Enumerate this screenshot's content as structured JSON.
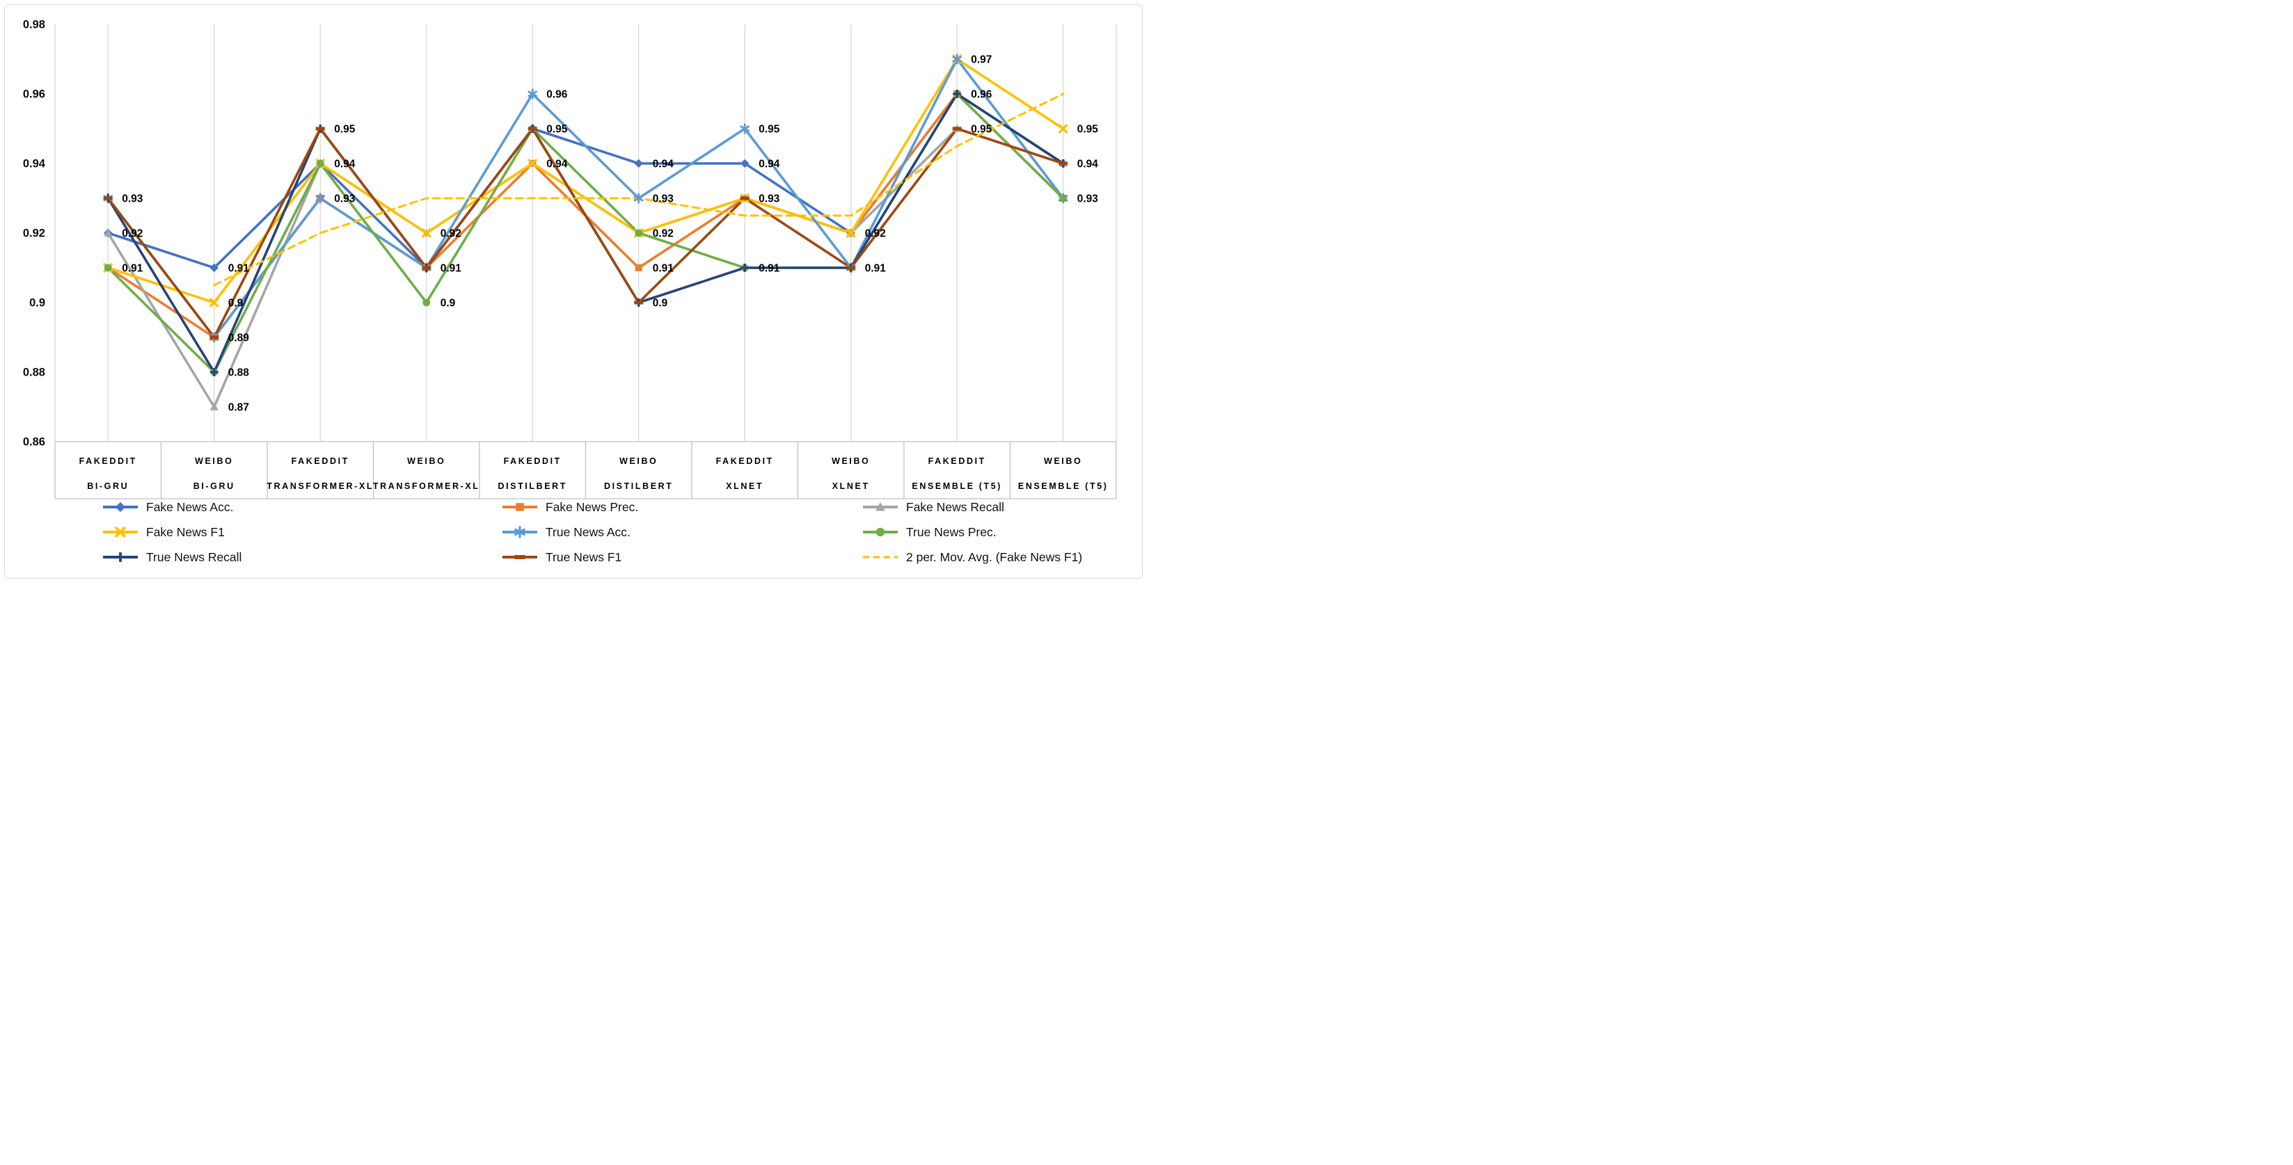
{
  "chart_data": {
    "type": "line",
    "title": "",
    "y_axis": {
      "min": 0.86,
      "max": 0.98,
      "step": 0.02,
      "tick_labels": [
        "0.98",
        "0.96",
        "0.94",
        "0.92",
        "0.9",
        "0.88",
        "0.86"
      ],
      "gridlines": "vertical-only"
    },
    "categories": [
      {
        "dataset": "FAKEDDIT",
        "model": "BI-GRU"
      },
      {
        "dataset": "WEIBO",
        "model": "BI-GRU"
      },
      {
        "dataset": "FAKEDDIT",
        "model": "TRANSFORMER-XL"
      },
      {
        "dataset": "WEIBO",
        "model": "TRANSFORMER-XL"
      },
      {
        "dataset": "FAKEDDIT",
        "model": "DISTILBERT"
      },
      {
        "dataset": "WEIBO",
        "model": "DISTILBERT"
      },
      {
        "dataset": "FAKEDDIT",
        "model": "XLNET"
      },
      {
        "dataset": "WEIBO",
        "model": "XLNET"
      },
      {
        "dataset": "FAKEDDIT",
        "model": "ENSEMBLE (T5)"
      },
      {
        "dataset": "WEIBO",
        "model": "ENSEMBLE (T5)"
      }
    ],
    "series": [
      {
        "name": "Fake News Acc.",
        "color": "#4472C4",
        "marker": "diamond",
        "line": "solid",
        "values": [
          0.92,
          0.91,
          0.94,
          0.91,
          0.95,
          0.94,
          0.94,
          0.92,
          0.96,
          0.94
        ]
      },
      {
        "name": "Fake News Prec.",
        "color": "#ED7D31",
        "marker": "square",
        "line": "solid",
        "values": [
          0.91,
          0.89,
          0.93,
          0.91,
          0.94,
          0.91,
          0.93,
          0.92,
          0.96,
          0.93
        ]
      },
      {
        "name": "Fake News Recall",
        "color": "#A5A5A5",
        "marker": "triangle",
        "line": "solid",
        "values": [
          0.92,
          0.87,
          0.94,
          0.92,
          0.94,
          0.92,
          0.93,
          0.92,
          0.95,
          0.94
        ]
      },
      {
        "name": "Fake News F1",
        "color": "#FFC000",
        "marker": "x",
        "line": "solid",
        "values": [
          0.91,
          0.9,
          0.94,
          0.92,
          0.94,
          0.92,
          0.93,
          0.92,
          0.97,
          0.95
        ]
      },
      {
        "name": "True News Acc.",
        "color": "#5B9BD5",
        "marker": "asterisk",
        "line": "solid",
        "values": [
          0.93,
          0.89,
          0.93,
          0.91,
          0.96,
          0.93,
          0.95,
          0.91,
          0.97,
          0.93
        ]
      },
      {
        "name": "True News Prec.",
        "color": "#70AD47",
        "marker": "circle",
        "line": "solid",
        "values": [
          0.91,
          0.88,
          0.94,
          0.9,
          0.95,
          0.92,
          0.91,
          0.91,
          0.96,
          0.93
        ]
      },
      {
        "name": "True News Recall",
        "color": "#264478",
        "marker": "plus",
        "line": "solid",
        "values": [
          0.93,
          0.88,
          0.95,
          0.91,
          0.95,
          0.9,
          0.91,
          0.91,
          0.96,
          0.94
        ]
      },
      {
        "name": "True News F1",
        "color": "#9E480E",
        "marker": "dash",
        "line": "solid",
        "values": [
          0.93,
          0.89,
          0.95,
          0.91,
          0.95,
          0.9,
          0.93,
          0.91,
          0.95,
          0.94
        ]
      },
      {
        "name": "2 per. Mov. Avg. (Fake News F1)",
        "color": "#FFC000",
        "marker": "none",
        "line": "dashed",
        "values": [
          null,
          0.905,
          0.92,
          0.93,
          0.93,
          0.93,
          0.925,
          0.925,
          0.945,
          0.96
        ]
      }
    ],
    "data_labels": [
      [
        "0.93",
        "0.92",
        "0.91"
      ],
      [
        "0.91",
        "0.9",
        "0.89",
        "0.88",
        "0.87"
      ],
      [
        "0.95",
        "0.94",
        "0.93"
      ],
      [
        "0.92",
        "0.91",
        "0.9"
      ],
      [
        "0.96",
        "0.95",
        "0.94"
      ],
      [
        "0.94",
        "0.93",
        "0.92",
        "0.91",
        "0.9"
      ],
      [
        "0.95",
        "0.94",
        "0.93",
        "0.91"
      ],
      [
        "0.92",
        "0.91"
      ],
      [
        "0.97",
        "0.96",
        "0.95"
      ],
      [
        "0.95",
        "0.94",
        "0.93"
      ]
    ],
    "legend": {
      "position": "bottom",
      "columns": 3
    }
  },
  "colors": {
    "grid": "#D6D6D6",
    "axis": "#BFBFBF",
    "tick_text": "#0d0d0d",
    "label_text": "#000000",
    "legend_text": "#111111",
    "frame": "#D9D9D9"
  }
}
